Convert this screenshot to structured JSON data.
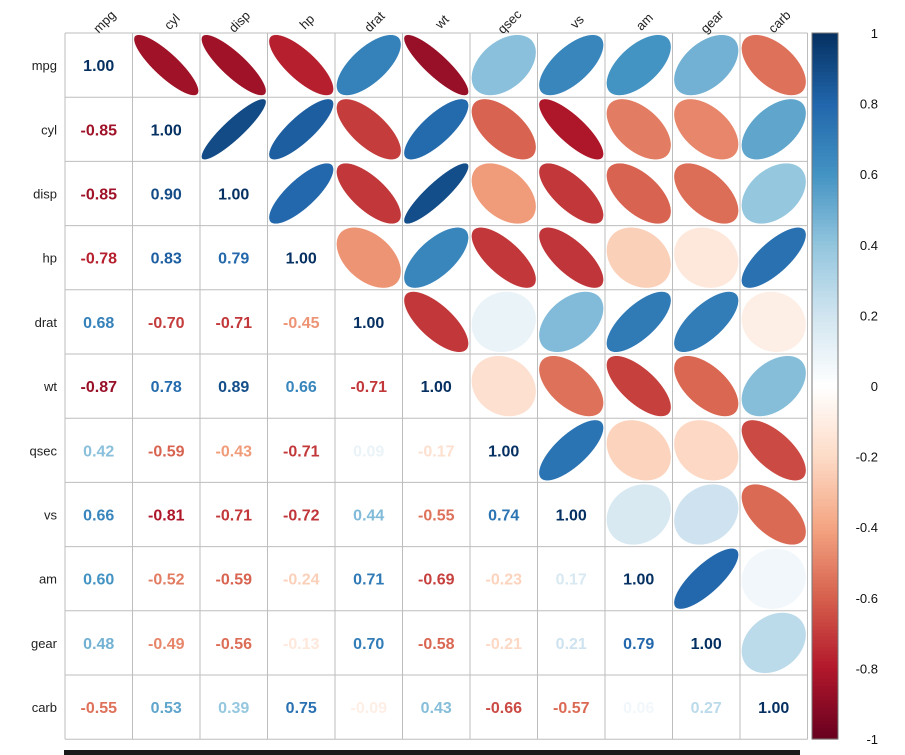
{
  "chart_data": {
    "type": "heatmap",
    "variables": [
      "mpg",
      "cyl",
      "disp",
      "hp",
      "drat",
      "wt",
      "qsec",
      "vs",
      "am",
      "gear",
      "carb"
    ],
    "matrix": [
      [
        1.0,
        -0.85,
        -0.85,
        -0.78,
        0.68,
        -0.87,
        0.42,
        0.66,
        0.6,
        0.48,
        -0.55
      ],
      [
        -0.85,
        1.0,
        0.9,
        0.83,
        -0.7,
        0.78,
        -0.59,
        -0.81,
        -0.52,
        -0.49,
        0.53
      ],
      [
        -0.85,
        0.9,
        1.0,
        0.79,
        -0.71,
        0.89,
        -0.43,
        -0.71,
        -0.59,
        -0.56,
        0.39
      ],
      [
        -0.78,
        0.83,
        0.79,
        1.0,
        -0.45,
        0.66,
        -0.71,
        -0.72,
        -0.24,
        -0.13,
        0.75
      ],
      [
        0.68,
        -0.7,
        -0.71,
        -0.45,
        1.0,
        -0.71,
        0.09,
        0.44,
        0.71,
        0.7,
        -0.09
      ],
      [
        -0.87,
        0.78,
        0.89,
        0.66,
        -0.71,
        1.0,
        -0.17,
        -0.55,
        -0.69,
        -0.58,
        0.43
      ],
      [
        0.42,
        -0.59,
        -0.43,
        -0.71,
        0.09,
        -0.17,
        1.0,
        0.74,
        -0.23,
        -0.21,
        -0.66
      ],
      [
        0.66,
        -0.81,
        -0.71,
        -0.72,
        0.44,
        -0.55,
        0.74,
        1.0,
        0.17,
        0.21,
        -0.57
      ],
      [
        0.6,
        -0.52,
        -0.59,
        -0.24,
        0.71,
        -0.69,
        -0.23,
        0.17,
        1.0,
        0.79,
        0.06
      ],
      [
        0.48,
        -0.49,
        -0.56,
        -0.13,
        0.7,
        -0.58,
        -0.21,
        0.21,
        0.79,
        1.0,
        0.27
      ],
      [
        -0.55,
        0.53,
        0.39,
        0.75,
        -0.09,
        0.43,
        -0.66,
        -0.57,
        0.06,
        0.27,
        1.0
      ]
    ],
    "lower_display": "number",
    "upper_display": "ellipse",
    "colorbar": {
      "range": [
        -1,
        1
      ],
      "ticks": [
        "1",
        "0.8",
        "0.6",
        "0.4",
        "0.2",
        "0",
        "-0.2",
        "-0.4",
        "-0.6",
        "-0.8",
        "-1"
      ]
    },
    "colors": {
      "neg_strong": "#67001f",
      "neg_mid": "#d6604d",
      "neutral": "#ffffff",
      "pos_mid": "#4393c3",
      "pos_strong": "#053061",
      "grid": "#bdbdbd"
    }
  }
}
